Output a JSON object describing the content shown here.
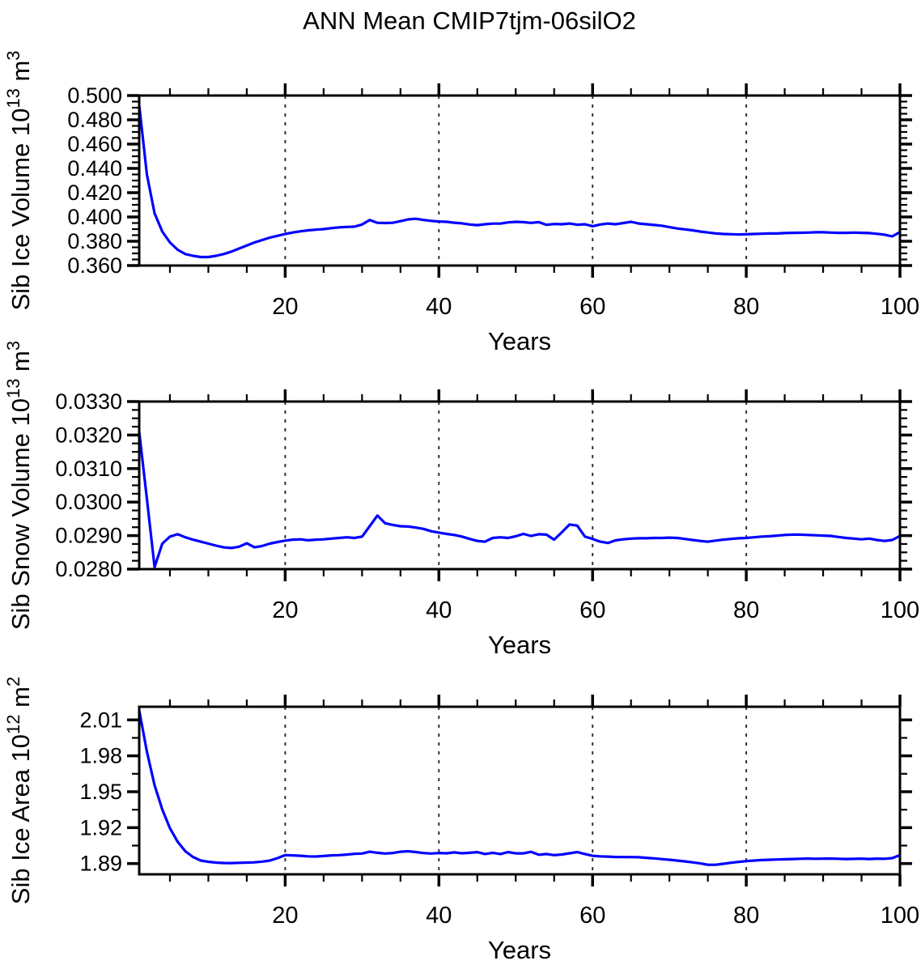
{
  "figure_title": "ANN Mean CMIP7tjm-06silO2",
  "colors": {
    "axis": "#000000",
    "grid": "#333333",
    "background": "#ffffff",
    "line": "#0000ff"
  },
  "chart_data": [
    {
      "type": "line",
      "name": "sib-ice-volume",
      "ylabel_text": "Sib Ice Volume 10^13 m^3",
      "ylabel_segments": [
        {
          "t": "Sib Ice Volume 10"
        },
        {
          "t": "13",
          "sup": true
        },
        {
          "t": " m"
        },
        {
          "t": "3",
          "sup": true
        }
      ],
      "xlabel": "Years",
      "x_range": [
        1,
        100
      ],
      "x_step": 1,
      "ylim": [
        0.36,
        0.5
      ],
      "yticks": [
        0.36,
        0.38,
        0.4,
        0.42,
        0.44,
        0.46,
        0.48,
        0.5
      ],
      "ytick_labels": [
        "0.360",
        "0.380",
        "0.400",
        "0.420",
        "0.440",
        "0.460",
        "0.480",
        "0.500"
      ],
      "ytick_minor_step": 0.005,
      "xticks": [
        20,
        40,
        60,
        80,
        100
      ],
      "xtick_labels": [
        "20",
        "40",
        "60",
        "80",
        "100"
      ],
      "xtick_minor_step": 5,
      "grid_x": [
        20,
        40,
        60,
        80
      ],
      "line_color": "#0000ff",
      "values": [
        0.492,
        0.435,
        0.403,
        0.388,
        0.379,
        0.373,
        0.3695,
        0.368,
        0.367,
        0.367,
        0.368,
        0.3695,
        0.3715,
        0.374,
        0.3765,
        0.379,
        0.381,
        0.383,
        0.3845,
        0.386,
        0.3872,
        0.3882,
        0.389,
        0.3895,
        0.39,
        0.3908,
        0.3914,
        0.3918,
        0.392,
        0.3938,
        0.3975,
        0.3952,
        0.395,
        0.3952,
        0.3965,
        0.398,
        0.3985,
        0.3975,
        0.3968,
        0.3963,
        0.396,
        0.3953,
        0.3947,
        0.3938,
        0.3933,
        0.394,
        0.3945,
        0.3945,
        0.3955,
        0.396,
        0.3957,
        0.3951,
        0.3957,
        0.3935,
        0.3942,
        0.394,
        0.3946,
        0.3936,
        0.394,
        0.3924,
        0.3938,
        0.3946,
        0.394,
        0.395,
        0.396,
        0.3946,
        0.394,
        0.3934,
        0.3928,
        0.3916,
        0.3905,
        0.3898,
        0.389,
        0.388,
        0.3872,
        0.3865,
        0.386,
        0.3858,
        0.3856,
        0.3857,
        0.386,
        0.3862,
        0.3864,
        0.3864,
        0.3867,
        0.3869,
        0.387,
        0.3871,
        0.3874,
        0.3874,
        0.3871,
        0.3869,
        0.3869,
        0.3871,
        0.3869,
        0.3867,
        0.3861,
        0.3854,
        0.384,
        0.3876
      ]
    },
    {
      "type": "line",
      "name": "sib-snow-volume",
      "ylabel_text": "Sib Snow Volume 10^13 m^3",
      "ylabel_segments": [
        {
          "t": "Sib Snow Volume 10"
        },
        {
          "t": "13",
          "sup": true
        },
        {
          "t": " m"
        },
        {
          "t": "3",
          "sup": true
        }
      ],
      "xlabel": "Years",
      "x_range": [
        1,
        100
      ],
      "x_step": 1,
      "ylim": [
        0.028,
        0.033
      ],
      "yticks": [
        0.028,
        0.029,
        0.03,
        0.031,
        0.032,
        0.033
      ],
      "ytick_labels": [
        "0.0280",
        "0.0290",
        "0.0300",
        "0.0310",
        "0.0320",
        "0.0330"
      ],
      "ytick_minor_step": 0.00025,
      "xticks": [
        20,
        40,
        60,
        80,
        100
      ],
      "xtick_labels": [
        "20",
        "40",
        "60",
        "80",
        "100"
      ],
      "xtick_minor_step": 5,
      "grid_x": [
        20,
        40,
        60,
        80
      ],
      "line_color": "#0000ff",
      "values": [
        0.0321,
        0.0301,
        0.02806,
        0.02876,
        0.02897,
        0.02904,
        0.02895,
        0.02888,
        0.02882,
        0.02876,
        0.0287,
        0.02865,
        0.02863,
        0.02867,
        0.02877,
        0.02865,
        0.02869,
        0.02876,
        0.02881,
        0.02885,
        0.02888,
        0.02889,
        0.02886,
        0.02888,
        0.02889,
        0.02891,
        0.02893,
        0.02895,
        0.02893,
        0.02897,
        0.02928,
        0.0296,
        0.02937,
        0.02932,
        0.02928,
        0.02927,
        0.02924,
        0.0292,
        0.02913,
        0.02909,
        0.02905,
        0.02902,
        0.02897,
        0.0289,
        0.02884,
        0.02882,
        0.02893,
        0.02895,
        0.02893,
        0.02898,
        0.02905,
        0.02899,
        0.02904,
        0.02903,
        0.02888,
        0.0291,
        0.02933,
        0.0293,
        0.02897,
        0.0289,
        0.02882,
        0.02878,
        0.02886,
        0.02889,
        0.02891,
        0.02892,
        0.02892,
        0.02893,
        0.02893,
        0.02894,
        0.02893,
        0.0289,
        0.02887,
        0.02884,
        0.02882,
        0.02885,
        0.02888,
        0.0289,
        0.02892,
        0.02893,
        0.02895,
        0.02897,
        0.02898,
        0.029,
        0.02902,
        0.02903,
        0.02903,
        0.02902,
        0.02901,
        0.029,
        0.02899,
        0.02896,
        0.02893,
        0.02891,
        0.02889,
        0.02891,
        0.02887,
        0.02884,
        0.02887,
        0.02899
      ]
    },
    {
      "type": "line",
      "name": "sib-ice-area",
      "ylabel_text": "Sib Ice Area 10^12 m^2",
      "ylabel_segments": [
        {
          "t": "Sib Ice Area 10"
        },
        {
          "t": "12",
          "sup": true
        },
        {
          "t": " m"
        },
        {
          "t": "2",
          "sup": true
        }
      ],
      "xlabel": "Years",
      "x_range": [
        1,
        100
      ],
      "x_step": 1,
      "ylim": [
        1.881,
        2.021
      ],
      "yticks": [
        1.89,
        1.92,
        1.95,
        1.98,
        2.01
      ],
      "ytick_labels": [
        "1.89",
        "1.92",
        "1.95",
        "1.98",
        "2.01"
      ],
      "ytick_minor_step": 0.015,
      "xticks": [
        20,
        40,
        60,
        80,
        100
      ],
      "xtick_labels": [
        "20",
        "40",
        "60",
        "80",
        "100"
      ],
      "xtick_minor_step": 5,
      "grid_x": [
        20,
        40,
        60,
        80
      ],
      "line_color": "#0000ff",
      "values": [
        2.018,
        1.9835,
        1.9554,
        1.9352,
        1.9195,
        1.9082,
        1.9003,
        1.8955,
        1.8925,
        1.8915,
        1.8908,
        1.8905,
        1.8904,
        1.8906,
        1.8908,
        1.891,
        1.8916,
        1.8925,
        1.8945,
        1.897,
        1.8968,
        1.8965,
        1.896,
        1.8959,
        1.8963,
        1.8968,
        1.897,
        1.8975,
        1.8981,
        1.8984,
        1.8999,
        1.899,
        1.8984,
        1.8988,
        1.8999,
        1.9003,
        1.8996,
        1.8988,
        1.8984,
        1.8988,
        1.8986,
        1.8993,
        1.8986,
        1.899,
        1.8995,
        1.898,
        1.899,
        1.898,
        1.8996,
        1.8985,
        1.8985,
        1.8998,
        1.8974,
        1.898,
        1.897,
        1.8976,
        1.8986,
        1.8996,
        1.898,
        1.8965,
        1.896,
        1.8958,
        1.8955,
        1.8954,
        1.8954,
        1.8953,
        1.8948,
        1.8943,
        1.8937,
        1.8932,
        1.8925,
        1.8918,
        1.891,
        1.8902,
        1.889,
        1.889,
        1.8898,
        1.8907,
        1.8914,
        1.892,
        1.8925,
        1.8929,
        1.8932,
        1.8934,
        1.8936,
        1.8938,
        1.894,
        1.8942,
        1.894,
        1.8941,
        1.8942,
        1.894,
        1.8938,
        1.8939,
        1.8941,
        1.8938,
        1.8941,
        1.894,
        1.8945,
        1.897
      ]
    }
  ]
}
